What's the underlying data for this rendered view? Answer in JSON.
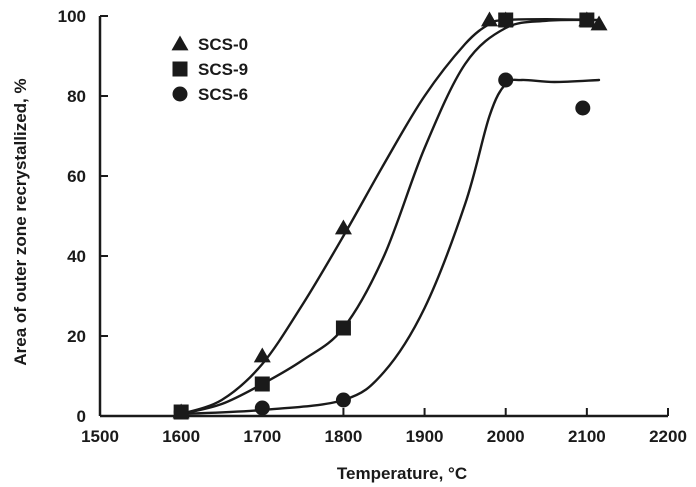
{
  "chart_data": {
    "type": "scatter",
    "title": "",
    "xlabel": "Temperature, °C",
    "ylabel": "Area of outer zone recrystallized, %",
    "xlim": [
      1500,
      2200
    ],
    "ylim": [
      0,
      100
    ],
    "x_ticks": [
      1500,
      1600,
      1700,
      1800,
      1900,
      2000,
      2100,
      2200
    ],
    "y_ticks": [
      0,
      20,
      40,
      60,
      80,
      100
    ],
    "grid": false,
    "legend_position": "top-left",
    "colors": {
      "ink": "#1a1a1a",
      "background": "#ffffff"
    },
    "series": [
      {
        "name": "SCS-0",
        "marker": "triangle",
        "points": [
          [
            1600,
            1
          ],
          [
            1700,
            15
          ],
          [
            1800,
            47
          ],
          [
            1980,
            99
          ],
          [
            2000,
            99
          ],
          [
            2100,
            99
          ],
          [
            2115,
            98
          ]
        ],
        "curve": [
          [
            1600,
            0.5
          ],
          [
            1650,
            4
          ],
          [
            1700,
            13
          ],
          [
            1750,
            28
          ],
          [
            1800,
            45
          ],
          [
            1850,
            63
          ],
          [
            1900,
            80
          ],
          [
            1950,
            93
          ],
          [
            1980,
            98
          ],
          [
            2000,
            99
          ],
          [
            2050,
            99.2
          ],
          [
            2115,
            99
          ]
        ]
      },
      {
        "name": "SCS-9",
        "marker": "square",
        "points": [
          [
            1600,
            1
          ],
          [
            1700,
            8
          ],
          [
            1800,
            22
          ],
          [
            2000,
            99
          ],
          [
            2100,
            99
          ]
        ],
        "curve": [
          [
            1600,
            0.5
          ],
          [
            1650,
            3
          ],
          [
            1700,
            8
          ],
          [
            1750,
            14
          ],
          [
            1800,
            22
          ],
          [
            1850,
            40
          ],
          [
            1900,
            67
          ],
          [
            1950,
            88
          ],
          [
            2000,
            97
          ],
          [
            2050,
            98.8
          ],
          [
            2100,
            99
          ]
        ]
      },
      {
        "name": "SCS-6",
        "marker": "circle",
        "points": [
          [
            1600,
            1
          ],
          [
            1700,
            2
          ],
          [
            1800,
            4
          ],
          [
            2000,
            84
          ],
          [
            2095,
            77
          ]
        ],
        "curve": [
          [
            1600,
            0.5
          ],
          [
            1700,
            1.5
          ],
          [
            1800,
            4
          ],
          [
            1850,
            11
          ],
          [
            1900,
            27
          ],
          [
            1950,
            53
          ],
          [
            1980,
            75
          ],
          [
            2000,
            83
          ],
          [
            2020,
            84
          ],
          [
            2060,
            83.5
          ],
          [
            2115,
            84
          ]
        ]
      }
    ]
  }
}
